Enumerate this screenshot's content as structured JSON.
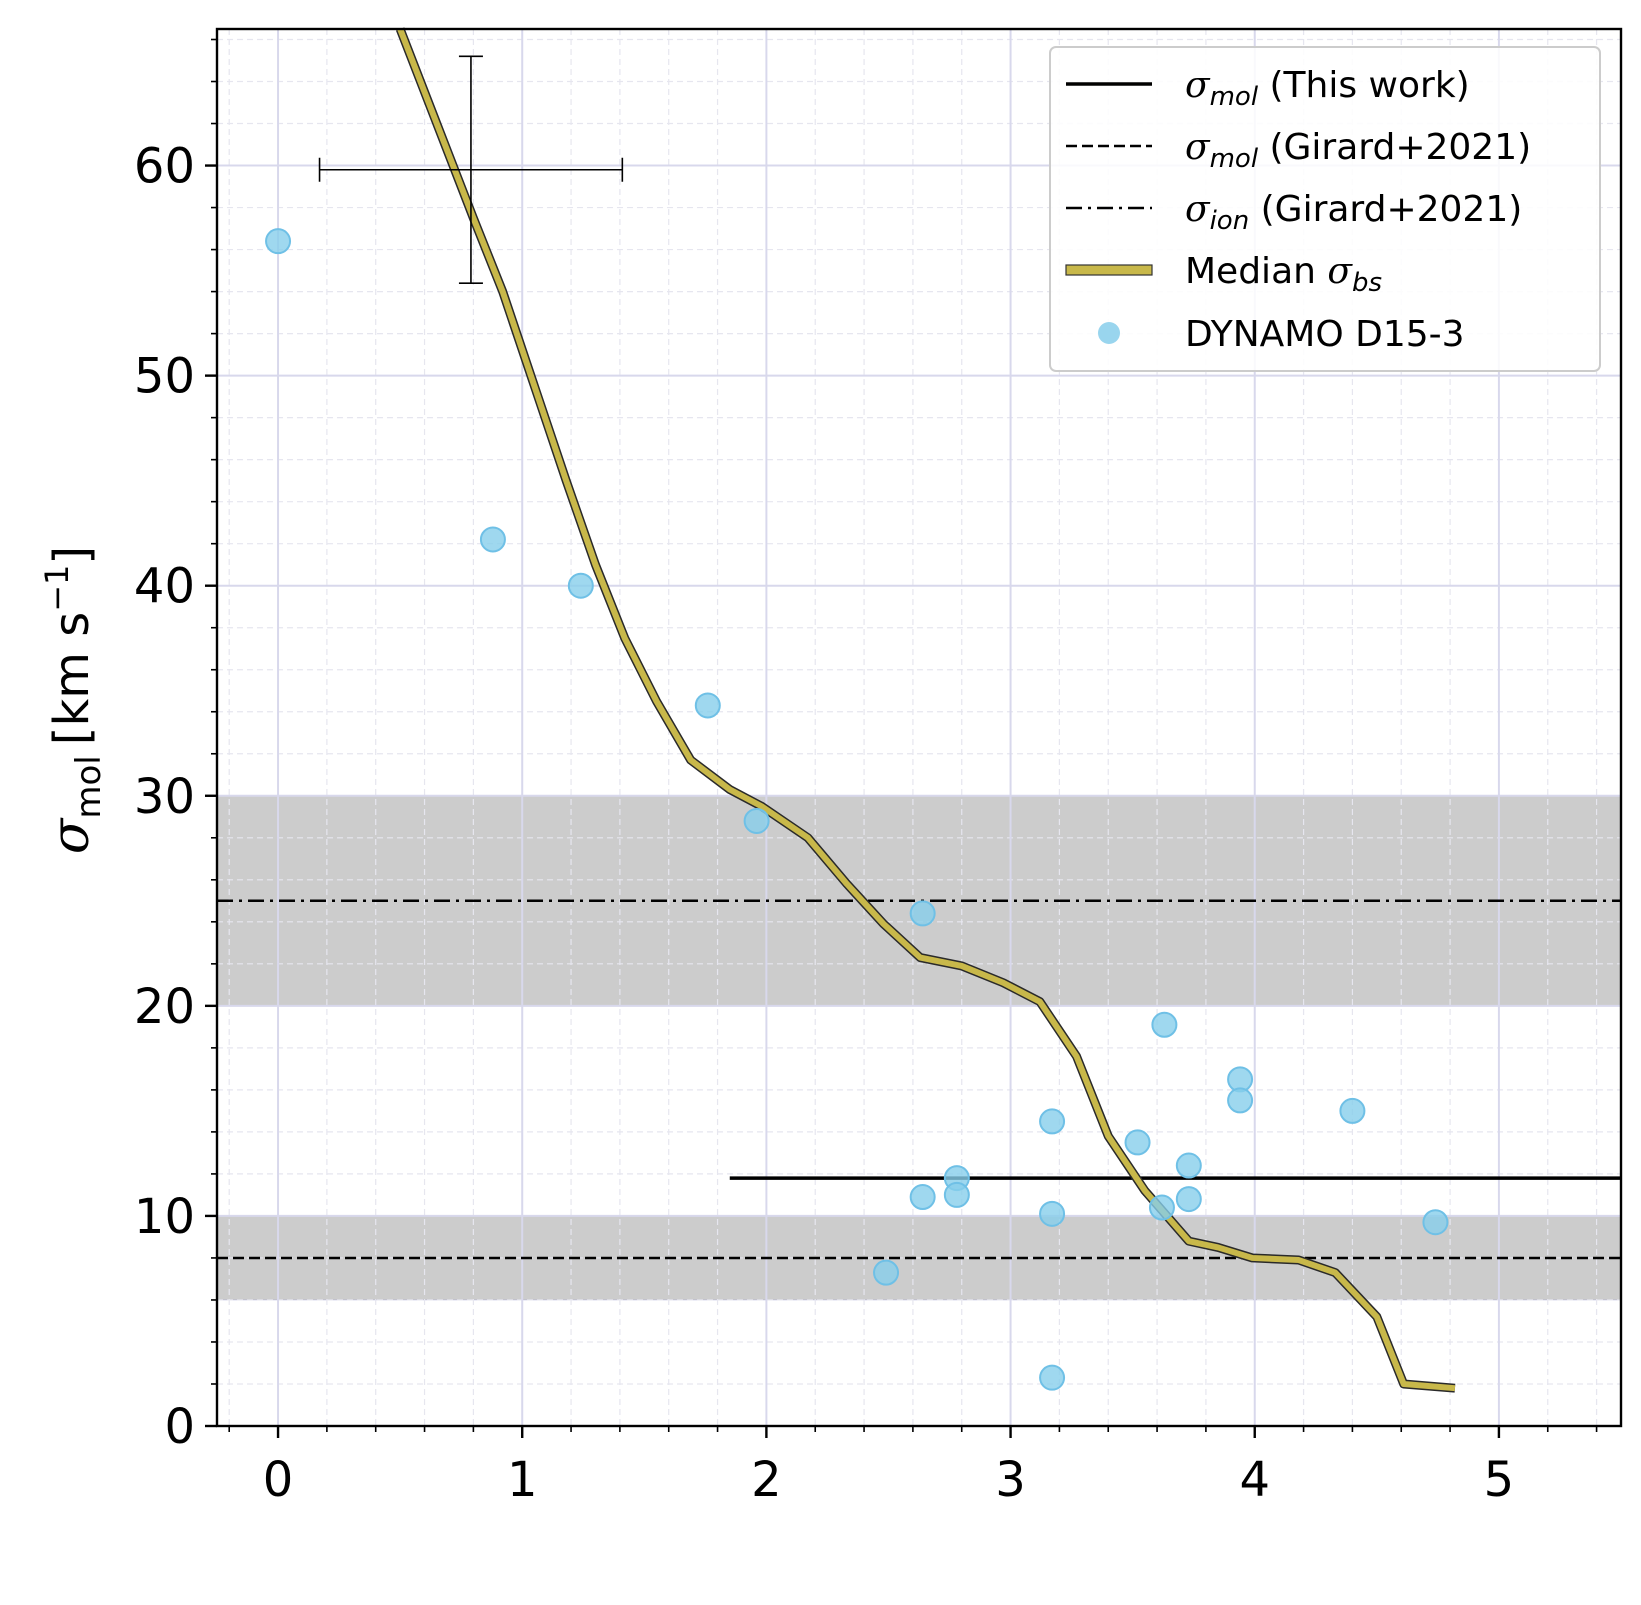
{
  "chart_data": {
    "type": "scatter",
    "title": "",
    "xlabel": "",
    "ylabel": {
      "symbol": "σ",
      "subscript": "mol",
      "unit_prefix": "[km s",
      "unit_exp": "−1",
      "unit_suffix": "]"
    },
    "xlim": [
      -0.25,
      5.5
    ],
    "ylim": [
      0,
      66.5
    ],
    "x_ticks": [
      0,
      1,
      2,
      3,
      4,
      5
    ],
    "x_tick_labels": [
      "0",
      "1",
      "2",
      "3",
      "4",
      "5"
    ],
    "y_ticks": [
      0,
      10,
      20,
      30,
      40,
      50,
      60
    ],
    "y_tick_labels": [
      "0",
      "10",
      "20",
      "30",
      "40",
      "50",
      "60"
    ],
    "grid": true,
    "shaded_bands": [
      {
        "name": "ion-band",
        "y0": 20,
        "y1": 30,
        "color": "#b0b0b0"
      },
      {
        "name": "mol-band",
        "y0": 6,
        "y1": 10,
        "color": "#b0b0b0"
      }
    ],
    "series": [
      {
        "name": "σmol (This work)",
        "kind": "hline",
        "y": 11.8,
        "x_start": 1.85,
        "x_end": 5.5,
        "color": "#000000",
        "style": "solid"
      },
      {
        "name": "σmol (Girard+2021)",
        "kind": "hline",
        "y": 8.0,
        "x_start": -0.25,
        "x_end": 5.5,
        "color": "#000000",
        "style": "dashed"
      },
      {
        "name": "σion (Girard+2021)",
        "kind": "hline",
        "y": 25.0,
        "x_start": -0.25,
        "x_end": 5.5,
        "color": "#000000",
        "style": "dashdot"
      },
      {
        "name": "Median σbs",
        "kind": "line",
        "color": "#c8b84a",
        "x": [
          0.5,
          0.65,
          0.8,
          0.92,
          1.05,
          1.18,
          1.3,
          1.42,
          1.55,
          1.69,
          1.85,
          1.98,
          2.17,
          2.33,
          2.48,
          2.63,
          2.8,
          2.97,
          3.12,
          3.27,
          3.4,
          3.55,
          3.73,
          3.85,
          3.99,
          4.18,
          4.33,
          4.5,
          4.61,
          4.82
        ],
        "y": [
          66.5,
          62,
          57.5,
          54,
          49.5,
          45,
          41,
          37.5,
          34.5,
          31.7,
          30.3,
          29.5,
          28,
          25.8,
          23.9,
          22.3,
          21.9,
          21.1,
          20.2,
          17.6,
          13.8,
          11.2,
          8.8,
          8.5,
          8.0,
          7.9,
          7.3,
          5.2,
          2.0,
          1.8
        ]
      },
      {
        "name": "DYNAMO D15-3",
        "kind": "scatter",
        "color": "#87ceeb",
        "x": [
          0.0,
          0.88,
          1.24,
          1.76,
          1.96,
          2.49,
          2.64,
          2.64,
          2.78,
          2.78,
          3.17,
          3.17,
          3.17,
          3.52,
          3.63,
          3.62,
          3.73,
          3.73,
          3.94,
          3.94,
          4.4,
          4.74
        ],
        "y": [
          56.4,
          42.2,
          40.0,
          34.3,
          28.8,
          7.3,
          24.4,
          10.9,
          11.8,
          11.0,
          14.5,
          10.1,
          2.3,
          13.5,
          19.1,
          10.4,
          12.4,
          10.8,
          16.5,
          15.5,
          15.0,
          9.7
        ]
      }
    ],
    "error_bar": {
      "x": 0.79,
      "y": 59.8,
      "xerr": [
        0.62,
        0.62
      ],
      "yerr": [
        5.4,
        5.4
      ]
    },
    "legend": {
      "placement": "top-right",
      "entries": [
        {
          "symbol": "σ",
          "sub": "mol",
          "text": " (This work)",
          "style": "solid"
        },
        {
          "symbol": "σ",
          "sub": "mol",
          "text": " (Girard+2021)",
          "style": "dashed"
        },
        {
          "symbol": "σ",
          "sub": "ion",
          "text": " (Girard+2021)",
          "style": "dashdot"
        },
        {
          "prefix": "Median ",
          "symbol": "σ",
          "sub": "bs",
          "text": "",
          "style": "median"
        },
        {
          "text": "DYNAMO D15-3",
          "style": "marker"
        }
      ]
    }
  }
}
